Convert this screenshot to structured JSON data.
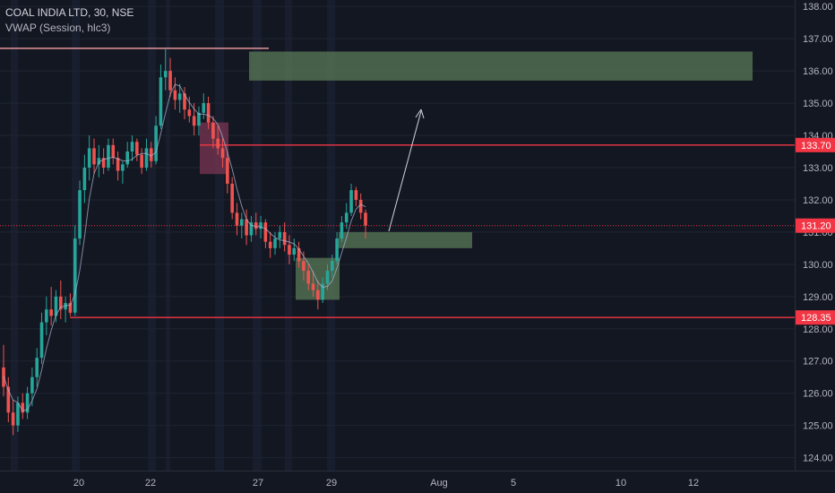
{
  "legend": {
    "symbol_line": "COAL INDIA LTD, 30, NSE",
    "indicator_line": "VWAP (Session, hlc3)"
  },
  "chart_data": {
    "type": "candlestick",
    "y_axis": {
      "ticks": [
        "124.00",
        "125.00",
        "126.00",
        "127.00",
        "128.00",
        "129.00",
        "130.00",
        "131.00",
        "132.00",
        "133.00",
        "134.00",
        "135.00",
        "136.00",
        "137.00",
        "138.00"
      ],
      "range": [
        123.6,
        138.2
      ]
    },
    "x_axis": {
      "ticks": [
        "20",
        "22",
        "27",
        "29",
        "Aug",
        "5",
        "10",
        "12"
      ]
    },
    "price_labels": [
      {
        "value": "133.70",
        "color": "#f23645"
      },
      {
        "value": "131.20",
        "color": "#f23645"
      },
      {
        "value": "128.35",
        "color": "#f23645"
      }
    ],
    "horizontal_levels": [
      {
        "price": 136.7,
        "color": "#f7a0a4"
      },
      {
        "price": 133.7,
        "color": "#f23645"
      },
      {
        "price": 128.35,
        "color": "#f23645"
      }
    ],
    "current_price": 131.2,
    "zones": [
      {
        "name": "supply-zone-top",
        "from_price": 135.7,
        "to_price": 136.6,
        "color": "#5a7a57"
      },
      {
        "name": "supply-zone-mid",
        "from_price": 132.8,
        "to_price": 134.4,
        "color": "#7a3552"
      },
      {
        "name": "demand-zone-low",
        "from_price": 128.9,
        "to_price": 130.2,
        "color": "#5a7a57"
      },
      {
        "name": "demand-zone-entry",
        "from_price": 130.5,
        "to_price": 131.0,
        "color": "#5a7a57"
      }
    ],
    "candles_ohlc": [
      [
        126.8,
        127.5,
        125.9,
        126.2
      ],
      [
        126.2,
        126.5,
        125.1,
        125.4
      ],
      [
        125.4,
        125.8,
        124.7,
        125.0
      ],
      [
        125.0,
        125.9,
        124.8,
        125.7
      ],
      [
        125.7,
        126.0,
        125.2,
        125.4
      ],
      [
        125.4,
        126.2,
        125.2,
        126.0
      ],
      [
        126.0,
        126.8,
        125.6,
        126.5
      ],
      [
        126.5,
        127.4,
        126.2,
        127.1
      ],
      [
        127.1,
        128.5,
        126.9,
        128.2
      ],
      [
        128.2,
        129.0,
        127.8,
        128.6
      ],
      [
        128.6,
        129.3,
        128.1,
        128.4
      ],
      [
        128.4,
        129.2,
        128.2,
        129.0
      ],
      [
        129.0,
        129.5,
        128.3,
        128.6
      ],
      [
        128.6,
        129.0,
        128.2,
        128.8
      ],
      [
        128.8,
        129.1,
        128.4,
        128.5
      ],
      [
        128.5,
        131.2,
        128.4,
        130.8
      ],
      [
        130.8,
        132.6,
        130.6,
        132.3
      ],
      [
        132.3,
        133.4,
        131.9,
        133.0
      ],
      [
        133.0,
        134.0,
        132.6,
        133.6
      ],
      [
        133.6,
        133.9,
        132.8,
        133.1
      ],
      [
        133.1,
        133.7,
        132.7,
        133.3
      ],
      [
        133.3,
        133.6,
        132.8,
        133.0
      ],
      [
        133.0,
        133.9,
        132.9,
        133.7
      ],
      [
        133.7,
        133.9,
        133.1,
        133.3
      ],
      [
        133.3,
        133.5,
        132.6,
        132.9
      ],
      [
        132.9,
        133.2,
        132.5,
        133.1
      ],
      [
        133.1,
        133.8,
        133.0,
        133.5
      ],
      [
        133.5,
        134.0,
        133.2,
        133.8
      ],
      [
        133.8,
        133.9,
        133.2,
        133.4
      ],
      [
        133.4,
        133.6,
        132.8,
        133.0
      ],
      [
        133.0,
        133.9,
        132.9,
        133.6
      ],
      [
        133.6,
        133.8,
        133.0,
        133.2
      ],
      [
        133.2,
        134.6,
        133.1,
        134.3
      ],
      [
        134.3,
        136.2,
        134.2,
        135.8
      ],
      [
        135.8,
        136.7,
        135.4,
        136.0
      ],
      [
        136.0,
        136.4,
        135.2,
        135.4
      ],
      [
        135.4,
        135.8,
        134.8,
        135.1
      ],
      [
        135.1,
        135.6,
        134.7,
        135.3
      ],
      [
        135.3,
        135.5,
        134.5,
        134.8
      ],
      [
        134.8,
        135.2,
        134.4,
        134.6
      ],
      [
        134.6,
        135.0,
        134.0,
        134.3
      ],
      [
        134.3,
        134.9,
        134.0,
        134.7
      ],
      [
        134.7,
        135.3,
        134.5,
        135.0
      ],
      [
        135.0,
        135.2,
        134.2,
        134.4
      ],
      [
        134.4,
        134.6,
        133.6,
        133.9
      ],
      [
        133.9,
        134.3,
        133.4,
        133.6
      ],
      [
        133.6,
        133.9,
        133.0,
        133.3
      ],
      [
        133.3,
        133.5,
        132.2,
        132.5
      ],
      [
        132.5,
        132.7,
        131.4,
        131.6
      ],
      [
        131.6,
        131.9,
        130.9,
        131.2
      ],
      [
        131.2,
        131.6,
        130.8,
        131.4
      ],
      [
        131.4,
        131.7,
        130.6,
        130.9
      ],
      [
        130.9,
        131.5,
        130.7,
        131.3
      ],
      [
        131.3,
        131.6,
        130.9,
        131.1
      ],
      [
        131.1,
        131.5,
        130.8,
        131.3
      ],
      [
        131.3,
        131.4,
        130.5,
        130.7
      ],
      [
        130.7,
        131.0,
        130.2,
        130.5
      ],
      [
        130.5,
        131.0,
        130.3,
        130.8
      ],
      [
        130.8,
        131.2,
        130.5,
        131.0
      ],
      [
        131.0,
        131.3,
        130.4,
        130.6
      ],
      [
        130.6,
        130.9,
        130.0,
        130.3
      ],
      [
        130.3,
        130.8,
        130.1,
        130.5
      ],
      [
        130.5,
        130.7,
        129.9,
        130.1
      ],
      [
        130.1,
        130.4,
        129.5,
        129.8
      ],
      [
        129.8,
        130.0,
        129.2,
        129.4
      ],
      [
        129.4,
        129.8,
        129.0,
        129.2
      ],
      [
        129.2,
        129.5,
        128.6,
        128.9
      ],
      [
        128.9,
        129.6,
        128.8,
        129.4
      ],
      [
        129.4,
        130.0,
        129.2,
        129.8
      ],
      [
        129.8,
        130.3,
        129.6,
        130.1
      ],
      [
        130.1,
        131.0,
        130.0,
        130.8
      ],
      [
        130.8,
        131.5,
        130.7,
        131.3
      ],
      [
        131.3,
        131.9,
        131.1,
        131.6
      ],
      [
        131.6,
        132.5,
        131.5,
        132.3
      ],
      [
        132.3,
        132.4,
        131.8,
        132.0
      ],
      [
        132.0,
        132.2,
        131.4,
        131.6
      ],
      [
        131.6,
        131.7,
        130.8,
        131.2
      ]
    ]
  }
}
